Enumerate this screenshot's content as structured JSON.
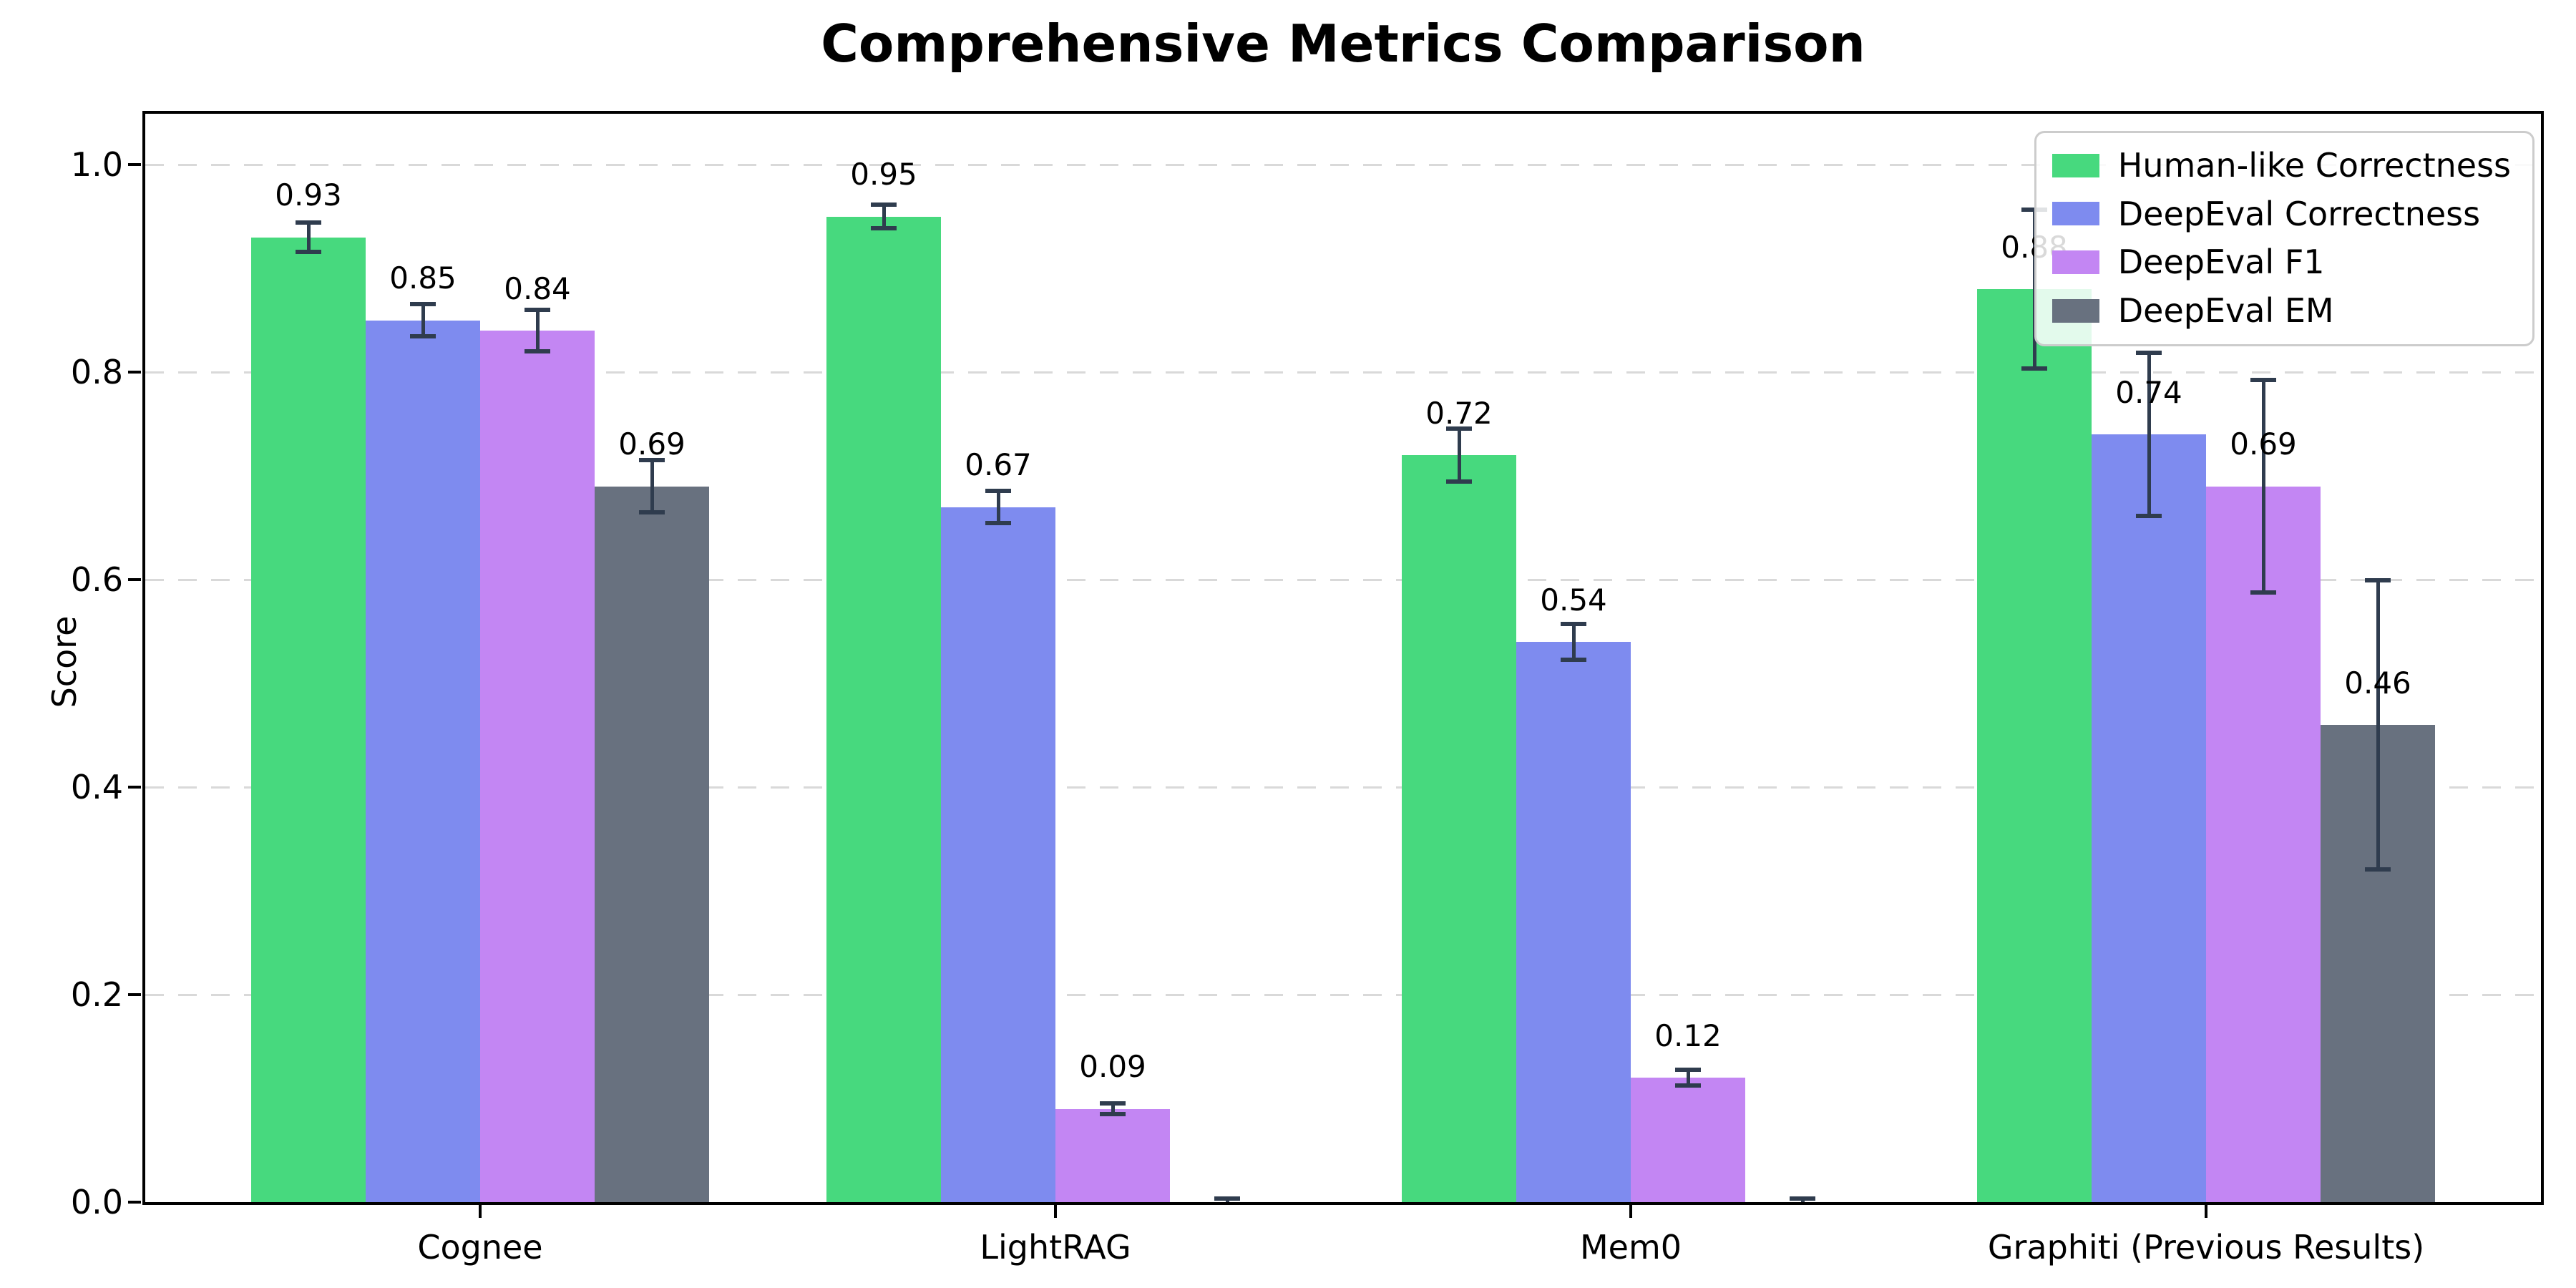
{
  "title": "Comprehensive Metrics Comparison",
  "ylabel": "Score",
  "legend": {
    "position": "upper right",
    "items": [
      {
        "label": "Human-like Correctness",
        "color": "#47d97e"
      },
      {
        "label": "DeepEval Correctness",
        "color": "#7e8bef"
      },
      {
        "label": "DeepEval F1",
        "color": "#c386f3"
      },
      {
        "label": "DeepEval EM",
        "color": "#68717f"
      }
    ]
  },
  "chart_data": {
    "type": "bar",
    "title": "Comprehensive Metrics Comparison",
    "xlabel": "",
    "ylabel": "Score",
    "categories": [
      "Cognee",
      "LightRAG",
      "Mem0",
      "Graphiti (Previous Results)"
    ],
    "series": [
      {
        "name": "Human-like Correctness",
        "color": "#47d97e",
        "values": [
          0.93,
          0.95,
          0.72,
          0.88
        ],
        "errors": [
          0.015,
          0.012,
          0.026,
          0.077
        ],
        "labels": [
          "0.93",
          "0.95",
          "0.72",
          "0.88"
        ]
      },
      {
        "name": "DeepEval Correctness",
        "color": "#7e8bef",
        "values": [
          0.85,
          0.67,
          0.54,
          0.74
        ],
        "errors": [
          0.016,
          0.016,
          0.018,
          0.079
        ],
        "labels": [
          "0.85",
          "0.67",
          "0.54",
          "0.74"
        ]
      },
      {
        "name": "DeepEval F1",
        "color": "#c386f3",
        "values": [
          0.84,
          0.09,
          0.12,
          0.69
        ],
        "errors": [
          0.021,
          0.006,
          0.008,
          0.103
        ],
        "labels": [
          "0.84",
          "0.09",
          "0.12",
          "0.69"
        ]
      },
      {
        "name": "DeepEval EM",
        "color": "#68717f",
        "values": [
          0.69,
          0.0,
          0.0,
          0.46
        ],
        "errors": [
          0.026,
          0.004,
          0.004,
          0.14
        ],
        "labels": [
          "0.69",
          "",
          "",
          "0.46"
        ]
      }
    ],
    "ylim": [
      0.0,
      1.05
    ],
    "yticks": [
      "0.0",
      "0.2",
      "0.4",
      "0.6",
      "0.8",
      "1.0"
    ],
    "grid": "horizontal dashed",
    "legend_position": "upper right",
    "error_bar_color": "#2f3c4e"
  }
}
